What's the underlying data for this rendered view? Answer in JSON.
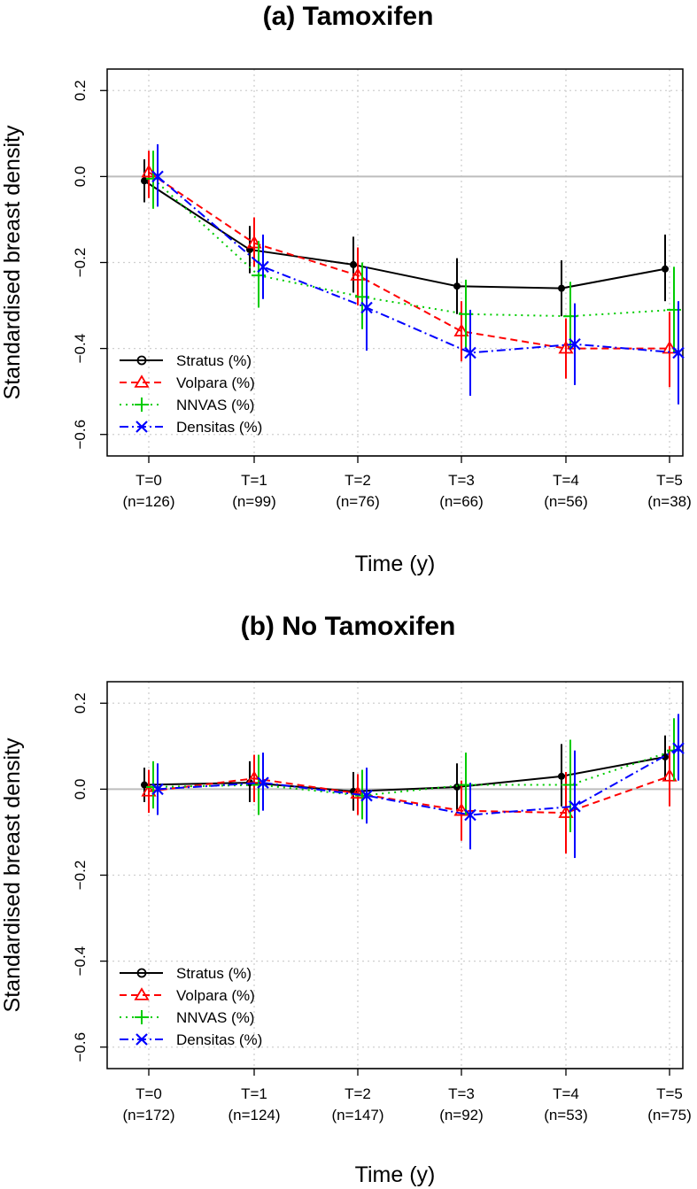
{
  "chart_data": [
    {
      "type": "line",
      "title": "(a) Tamoxifen",
      "xlabel": "Time (y)",
      "ylabel": "Standardised breast density",
      "ylim": [
        -0.65,
        0.25
      ],
      "yticks": [
        0.2,
        0.0,
        -0.2,
        -0.4,
        -0.6
      ],
      "ytick_labels": [
        "0.2",
        "0.0",
        "−0.2",
        "−0.4",
        "−0.6"
      ],
      "grid": true,
      "reference_line": 0,
      "legend_position": "bottom-left",
      "categories": [
        "T=0",
        "T=1",
        "T=2",
        "T=3",
        "T=4",
        "T=5"
      ],
      "sample_sizes": [
        "(n=126)",
        "(n=99)",
        "(n=76)",
        "(n=66)",
        "(n=56)",
        "(n=38)"
      ],
      "series": [
        {
          "name": "Stratus (%)",
          "color": "#000000",
          "marker": "circle",
          "dash": "",
          "offset": 0,
          "values": [
            -0.01,
            -0.17,
            -0.205,
            -0.255,
            -0.26,
            -0.215
          ],
          "lower": [
            -0.06,
            -0.225,
            -0.27,
            -0.32,
            -0.325,
            -0.29
          ],
          "upper": [
            0.04,
            -0.115,
            -0.14,
            -0.19,
            -0.195,
            -0.135
          ]
        },
        {
          "name": "Volpara (%)",
          "color": "#ff0000",
          "marker": "triangle",
          "dash": "8,5",
          "offset": 1,
          "values": [
            0.01,
            -0.155,
            -0.23,
            -0.36,
            -0.4,
            -0.4
          ],
          "lower": [
            -0.05,
            -0.21,
            -0.3,
            -0.43,
            -0.47,
            -0.49
          ],
          "upper": [
            0.06,
            -0.095,
            -0.165,
            -0.29,
            -0.33,
            -0.315
          ]
        },
        {
          "name": "NNVAS (%)",
          "color": "#00cc00",
          "marker": "plus",
          "dash": "2,5",
          "offset": 2,
          "values": [
            -0.005,
            -0.23,
            -0.28,
            -0.32,
            -0.325,
            -0.31
          ],
          "lower": [
            -0.075,
            -0.305,
            -0.355,
            -0.4,
            -0.4,
            -0.41
          ],
          "upper": [
            0.06,
            -0.15,
            -0.2,
            -0.24,
            -0.245,
            -0.21
          ]
        },
        {
          "name": "Densitas (%)",
          "color": "#0000ff",
          "marker": "x",
          "dash": "10,4,2,4",
          "offset": 3,
          "values": [
            0.0,
            -0.21,
            -0.305,
            -0.41,
            -0.39,
            -0.41
          ],
          "lower": [
            -0.07,
            -0.285,
            -0.405,
            -0.51,
            -0.485,
            -0.53
          ],
          "upper": [
            0.075,
            -0.135,
            -0.21,
            -0.31,
            -0.295,
            -0.29
          ]
        }
      ]
    },
    {
      "type": "line",
      "title": "(b) No Tamoxifen",
      "xlabel": "Time (y)",
      "ylabel": "Standardised breast density",
      "ylim": [
        -0.65,
        0.25
      ],
      "yticks": [
        0.2,
        0.0,
        -0.2,
        -0.4,
        -0.6
      ],
      "ytick_labels": [
        "0.2",
        "0.0",
        "−0.2",
        "−0.4",
        "−0.6"
      ],
      "grid": true,
      "reference_line": 0,
      "legend_position": "bottom-left",
      "categories": [
        "T=0",
        "T=1",
        "T=2",
        "T=3",
        "T=4",
        "T=5"
      ],
      "sample_sizes": [
        "(n=172)",
        "(n=124)",
        "(n=147)",
        "(n=92)",
        "(n=53)",
        "(n=75)"
      ],
      "series": [
        {
          "name": "Stratus (%)",
          "color": "#000000",
          "marker": "circle",
          "dash": "",
          "offset": 0,
          "values": [
            0.01,
            0.015,
            -0.005,
            0.005,
            0.03,
            0.075
          ],
          "lower": [
            -0.03,
            -0.03,
            -0.05,
            -0.05,
            -0.04,
            0.02
          ],
          "upper": [
            0.05,
            0.065,
            0.04,
            0.06,
            0.105,
            0.125
          ]
        },
        {
          "name": "Volpara (%)",
          "color": "#ff0000",
          "marker": "triangle",
          "dash": "8,5",
          "offset": 1,
          "values": [
            -0.005,
            0.025,
            -0.01,
            -0.05,
            -0.055,
            0.03
          ],
          "lower": [
            -0.055,
            -0.03,
            -0.06,
            -0.12,
            -0.15,
            -0.04
          ],
          "upper": [
            0.045,
            0.08,
            0.035,
            0.02,
            0.04,
            0.1
          ]
        },
        {
          "name": "NNVAS (%)",
          "color": "#00cc00",
          "marker": "plus",
          "dash": "2,5",
          "offset": 2,
          "values": [
            0.005,
            0.01,
            -0.015,
            0.01,
            0.01,
            0.09
          ],
          "lower": [
            -0.045,
            -0.06,
            -0.07,
            -0.06,
            -0.1,
            0.02
          ],
          "upper": [
            0.065,
            0.08,
            0.045,
            0.085,
            0.115,
            0.165
          ]
        },
        {
          "name": "Densitas (%)",
          "color": "#0000ff",
          "marker": "x",
          "dash": "10,4,2,4",
          "offset": 3,
          "values": [
            0.0,
            0.015,
            -0.015,
            -0.06,
            -0.04,
            0.095
          ],
          "lower": [
            -0.06,
            -0.05,
            -0.08,
            -0.14,
            -0.16,
            0.02
          ],
          "upper": [
            0.06,
            0.085,
            0.05,
            0.015,
            0.09,
            0.175
          ]
        }
      ]
    }
  ]
}
